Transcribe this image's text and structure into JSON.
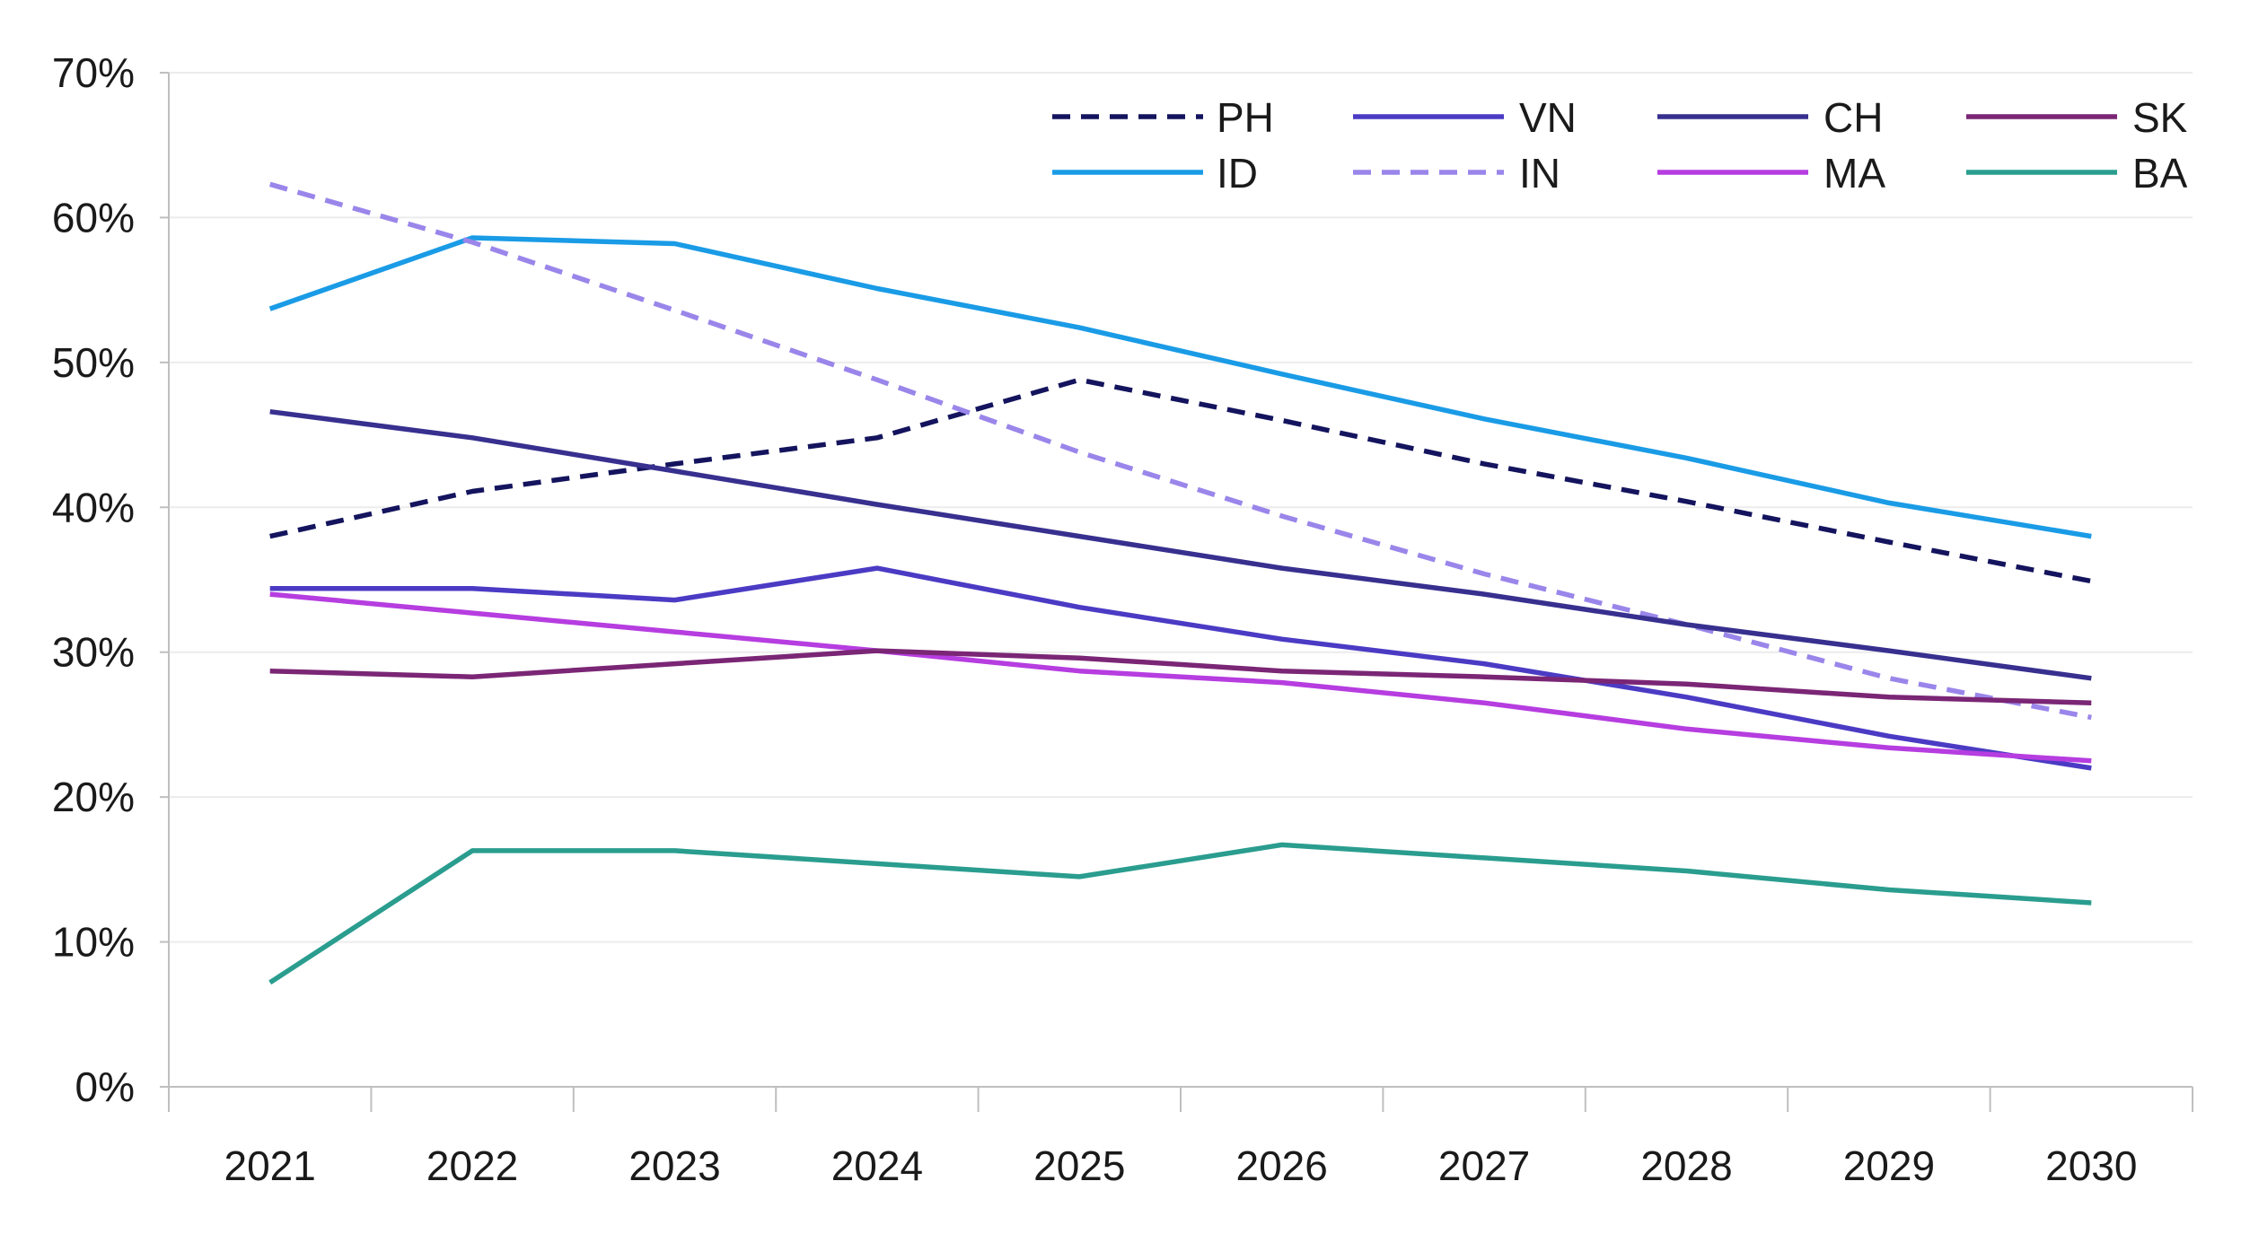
{
  "chart_data": {
    "type": "line",
    "title": "",
    "xlabel": "",
    "ylabel": "",
    "categories": [
      "2021",
      "2022",
      "2023",
      "2024",
      "2025",
      "2026",
      "2027",
      "2028",
      "2029",
      "2030"
    ],
    "ylim": [
      0,
      70
    ],
    "y_ticks": [
      0,
      10,
      20,
      30,
      40,
      50,
      60,
      70
    ],
    "y_tick_labels": [
      "0%",
      "10%",
      "20%",
      "30%",
      "40%",
      "50%",
      "60%",
      "70%"
    ],
    "grid": true,
    "legend_position": "top-right",
    "series": [
      {
        "name": "PH",
        "color": "#14145e",
        "dash": true,
        "values": [
          38,
          41.1,
          43,
          44.8,
          48.8,
          46,
          43,
          40.4,
          37.6,
          34.9
        ]
      },
      {
        "name": "ID",
        "color": "#1a9be6",
        "dash": false,
        "values": [
          53.7,
          58.6,
          58.2,
          55.1,
          52.4,
          49.2,
          46.1,
          43.4,
          40.3,
          38
        ]
      },
      {
        "name": "VN",
        "color": "#4b3bc4",
        "dash": false,
        "values": [
          34.4,
          34.4,
          33.6,
          35.8,
          33.1,
          30.9,
          29.2,
          26.9,
          24.2,
          22
        ]
      },
      {
        "name": "IN",
        "color": "#9a86ea",
        "dash": true,
        "values": [
          62.3,
          58.3,
          53.6,
          48.8,
          43.8,
          39.4,
          35.4,
          31.9,
          28.2,
          25.5
        ]
      },
      {
        "name": "CH",
        "color": "#37308f",
        "dash": false,
        "values": [
          46.6,
          44.8,
          42.5,
          40.2,
          38,
          35.8,
          34,
          31.9,
          30.1,
          28.2
        ]
      },
      {
        "name": "MA",
        "color": "#b63de0",
        "dash": false,
        "values": [
          34,
          32.7,
          31.4,
          30.1,
          28.7,
          27.9,
          26.5,
          24.7,
          23.4,
          22.5
        ]
      },
      {
        "name": "SK",
        "color": "#7a2675",
        "dash": false,
        "values": [
          28.7,
          28.3,
          29.2,
          30.1,
          29.6,
          28.7,
          28.3,
          27.8,
          26.9,
          26.5
        ]
      },
      {
        "name": "BA",
        "color": "#2a9d8f",
        "dash": false,
        "values": [
          7.2,
          16.3,
          16.3,
          15.4,
          14.5,
          16.7,
          15.8,
          14.9,
          13.6,
          12.7
        ]
      }
    ]
  }
}
